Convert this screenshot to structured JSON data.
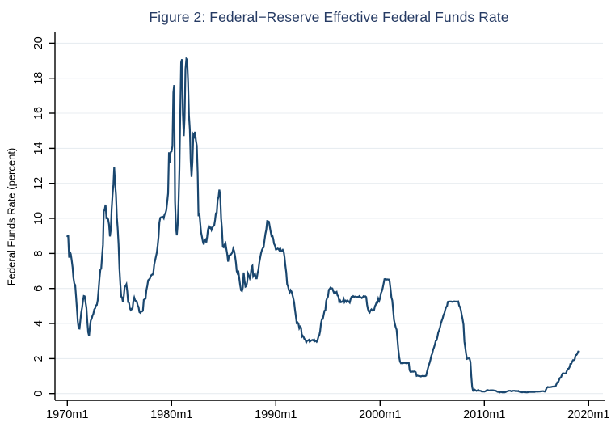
{
  "chart_data": {
    "type": "line",
    "title": "Figure 2: Federal−Reserve Effective Federal Funds Rate",
    "xlabel": "",
    "ylabel": "Federal Funds Rate (percent)",
    "grid": "horizontal",
    "legend": "none",
    "background_color": "#ffffff",
    "grid_color": "#e8edf1",
    "axis_color": "#000000",
    "line_color": "#1a476f",
    "title_color": "#253a63",
    "ylim": [
      0,
      20
    ],
    "xlim_labels": [
      "1970m1",
      "2020m1"
    ],
    "y_tick_values": [
      0,
      2,
      4,
      6,
      8,
      10,
      12,
      14,
      16,
      18,
      20
    ],
    "y_tick_labels": [
      "0",
      "2",
      "4",
      "6",
      "8",
      "10",
      "12",
      "14",
      "16",
      "18",
      "20"
    ],
    "x_tick_values": [
      1970,
      1980,
      1990,
      2000,
      2010,
      2020
    ],
    "x_tick_labels": [
      "1970m1",
      "1980m1",
      "1990m1",
      "2000m1",
      "2010m1",
      "2020m1"
    ],
    "series": [
      {
        "name": "Effective Federal Funds Rate (percent)",
        "frequency": "monthly",
        "start_year": 1970,
        "start": "1970m1",
        "end": "2019m2",
        "values": [
          8.98,
          8.98,
          7.76,
          8.1,
          7.95,
          7.61,
          7.21,
          6.62,
          6.29,
          6.2,
          5.6,
          4.9,
          4.14,
          3.72,
          3.71,
          4.15,
          4.63,
          4.91,
          5.31,
          5.57,
          5.55,
          5.2,
          4.91,
          4.14,
          3.5,
          3.29,
          3.83,
          4.17,
          4.27,
          4.46,
          4.55,
          4.8,
          4.87,
          5.04,
          5.06,
          5.33,
          5.94,
          6.58,
          7.09,
          7.12,
          7.84,
          8.49,
          10.4,
          10.5,
          10.78,
          10.01,
          10.03,
          9.95,
          9.65,
          8.97,
          9.35,
          10.51,
          11.31,
          11.93,
          12.92,
          12.01,
          11.34,
          10.06,
          9.45,
          8.53,
          7.13,
          6.24,
          5.54,
          5.49,
          5.22,
          5.55,
          6.1,
          6.14,
          6.24,
          5.82,
          5.22,
          5.2,
          4.87,
          4.77,
          4.84,
          4.82,
          5.29,
          5.48,
          5.31,
          5.29,
          5.25,
          5.03,
          4.95,
          4.65,
          4.61,
          4.68,
          4.69,
          4.73,
          5.35,
          5.39,
          5.42,
          5.9,
          6.14,
          6.47,
          6.51,
          6.56,
          6.7,
          6.78,
          6.79,
          6.89,
          7.36,
          7.6,
          7.81,
          8.04,
          8.45,
          8.96,
          9.76,
          10.03,
          10.07,
          10.06,
          10.09,
          10.01,
          10.24,
          10.29,
          10.47,
          10.94,
          11.43,
          13.77,
          13.18,
          13.78,
          13.82,
          14.13,
          17.19,
          17.61,
          10.98,
          9.47,
          9.03,
          9.61,
          10.87,
          12.81,
          15.85,
          18.9,
          19.08,
          15.93,
          14.7,
          15.72,
          18.52,
          19.1,
          19.04,
          17.82,
          15.87,
          15.08,
          13.31,
          12.37,
          13.22,
          14.78,
          14.68,
          14.94,
          14.45,
          14.15,
          12.59,
          10.12,
          10.31,
          9.71,
          9.2,
          8.95,
          8.68,
          8.51,
          8.77,
          8.8,
          8.63,
          8.98,
          9.37,
          9.56,
          9.45,
          9.48,
          9.34,
          9.47,
          9.56,
          9.59,
          9.91,
          10.29,
          10.32,
          11.06,
          11.23,
          11.64,
          11.3,
          9.99,
          9.43,
          8.38,
          8.35,
          8.5,
          8.58,
          8.27,
          7.97,
          7.53,
          7.88,
          7.9,
          7.92,
          7.99,
          8.05,
          8.27,
          8.14,
          7.86,
          7.48,
          6.99,
          6.85,
          6.92,
          6.56,
          6.17,
          5.89,
          5.85,
          6.04,
          6.91,
          6.43,
          6.1,
          6.13,
          6.37,
          6.85,
          6.73,
          6.58,
          6.73,
          7.22,
          7.29,
          6.69,
          6.77,
          6.83,
          6.58,
          6.58,
          6.87,
          7.09,
          7.51,
          7.75,
          8.01,
          8.19,
          8.3,
          8.35,
          8.76,
          9.12,
          9.36,
          9.85,
          9.84,
          9.81,
          9.53,
          9.24,
          8.99,
          9.02,
          8.84,
          8.55,
          8.45,
          8.23,
          8.24,
          8.28,
          8.26,
          8.18,
          8.29,
          8.15,
          8.13,
          8.2,
          8.11,
          7.81,
          7.31,
          6.91,
          6.25,
          6.12,
          5.91,
          5.78,
          5.9,
          5.82,
          5.66,
          5.45,
          5.21,
          4.81,
          4.43,
          4.03,
          4.06,
          3.98,
          3.73,
          3.82,
          3.76,
          3.25,
          3.3,
          3.22,
          3.1,
          3.09,
          2.92,
          3.02,
          3.03,
          3.07,
          2.96,
          3.0,
          3.04,
          3.06,
          3.03,
          3.09,
          2.99,
          3.02,
          2.96,
          3.05,
          3.25,
          3.34,
          3.56,
          4.01,
          4.25,
          4.26,
          4.47,
          4.73,
          4.76,
          5.29,
          5.45,
          5.53,
          5.92,
          5.98,
          6.05,
          6.01,
          6.0,
          5.85,
          5.74,
          5.8,
          5.76,
          5.8,
          5.6,
          5.56,
          5.22,
          5.31,
          5.22,
          5.24,
          5.27,
          5.4,
          5.22,
          5.3,
          5.24,
          5.31,
          5.29,
          5.25,
          5.19,
          5.39,
          5.51,
          5.5,
          5.56,
          5.52,
          5.54,
          5.54,
          5.5,
          5.52,
          5.5,
          5.56,
          5.51,
          5.49,
          5.45,
          5.49,
          5.56,
          5.54,
          5.55,
          5.51,
          5.07,
          4.83,
          4.68,
          4.63,
          4.76,
          4.81,
          4.74,
          4.74,
          4.76,
          4.99,
          5.07,
          5.22,
          5.2,
          5.42,
          5.3,
          5.45,
          5.73,
          5.85,
          6.02,
          6.27,
          6.53,
          6.54,
          6.5,
          6.52,
          6.51,
          6.51,
          6.4,
          5.98,
          5.49,
          5.31,
          4.8,
          4.21,
          3.97,
          3.77,
          3.65,
          3.07,
          2.49,
          2.09,
          1.82,
          1.73,
          1.74,
          1.73,
          1.75,
          1.75,
          1.75,
          1.73,
          1.74,
          1.75,
          1.75,
          1.34,
          1.24,
          1.24,
          1.26,
          1.25,
          1.26,
          1.26,
          1.22,
          1.01,
          1.03,
          1.01,
          1.01,
          1.0,
          0.98,
          1.0,
          1.01,
          1.0,
          1.0,
          1.0,
          1.03,
          1.26,
          1.43,
          1.61,
          1.76,
          1.93,
          2.16,
          2.28,
          2.5,
          2.63,
          2.79,
          3.0,
          3.04,
          3.26,
          3.5,
          3.62,
          3.78,
          4.0,
          4.16,
          4.29,
          4.49,
          4.59,
          4.79,
          4.94,
          4.99,
          5.24,
          5.25,
          5.25,
          5.25,
          5.25,
          5.24,
          5.25,
          5.26,
          5.26,
          5.25,
          5.25,
          5.25,
          5.26,
          5.02,
          4.94,
          4.76,
          4.49,
          4.24,
          3.94,
          2.98,
          2.61,
          2.28,
          1.98,
          2.0,
          2.01,
          2.0,
          1.81,
          0.97,
          0.39,
          0.16,
          0.15,
          0.22,
          0.18,
          0.15,
          0.18,
          0.21,
          0.16,
          0.16,
          0.15,
          0.12,
          0.12,
          0.12,
          0.11,
          0.13,
          0.16,
          0.2,
          0.2,
          0.18,
          0.18,
          0.19,
          0.19,
          0.19,
          0.19,
          0.18,
          0.17,
          0.16,
          0.14,
          0.1,
          0.09,
          0.09,
          0.07,
          0.1,
          0.08,
          0.07,
          0.08,
          0.07,
          0.08,
          0.1,
          0.13,
          0.14,
          0.16,
          0.16,
          0.16,
          0.13,
          0.14,
          0.16,
          0.16,
          0.16,
          0.14,
          0.15,
          0.14,
          0.15,
          0.11,
          0.09,
          0.09,
          0.08,
          0.08,
          0.09,
          0.08,
          0.09,
          0.07,
          0.07,
          0.08,
          0.09,
          0.09,
          0.1,
          0.09,
          0.09,
          0.09,
          0.09,
          0.09,
          0.12,
          0.11,
          0.11,
          0.11,
          0.12,
          0.12,
          0.13,
          0.13,
          0.14,
          0.14,
          0.12,
          0.12,
          0.24,
          0.34,
          0.38,
          0.36,
          0.37,
          0.37,
          0.38,
          0.39,
          0.4,
          0.4,
          0.4,
          0.41,
          0.54,
          0.65,
          0.66,
          0.79,
          0.9,
          0.91,
          1.04,
          1.15,
          1.16,
          1.15,
          1.15,
          1.16,
          1.3,
          1.41,
          1.42,
          1.51,
          1.69,
          1.7,
          1.82,
          1.91,
          1.91,
          1.95,
          2.19,
          2.2,
          2.27,
          2.4,
          2.4
        ]
      }
    ]
  }
}
